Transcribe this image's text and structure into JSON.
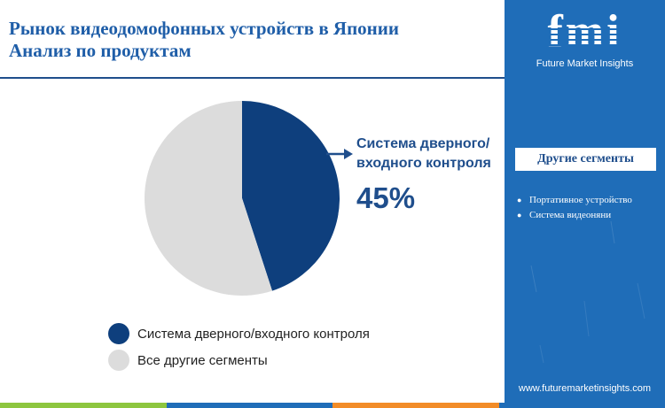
{
  "header": {
    "title_line1": "Рынок видеодомофонных устройств в Японии",
    "title_line2": "Анализ по продуктам"
  },
  "callout": {
    "label_line1": "Система дверного/",
    "label_line2": "входного контроля",
    "value": "45%",
    "arrow_icon": "arrow-right-icon"
  },
  "chart_data": {
    "type": "pie",
    "slices": [
      {
        "label": "Система дверного/входного контроля",
        "value": 45,
        "color": "#0e3f7d"
      },
      {
        "label": "Все другие сегменты",
        "value": 55,
        "color": "#dcdcdc"
      }
    ],
    "start_angle_deg": 0,
    "direction": "clockwise",
    "legend_position": "bottom"
  },
  "legend": {
    "items": [
      {
        "label": "Система дверного/входного контроля",
        "color": "#0e3f7d"
      },
      {
        "label": "Все другие сегменты",
        "color": "#dcdcdc"
      }
    ]
  },
  "sidebar": {
    "logo_text": "fmi",
    "logo_subtitle": "Future Market Insights",
    "segments_title": "Другие сегменты",
    "segments": [
      "Портативное устройство",
      "Система видеоняни"
    ],
    "website": "www.futuremarketinsights.com",
    "background_color": "#1f6db8"
  },
  "bottom_bar_colors": [
    "#8dc63f",
    "#1f6db8",
    "#f28c28",
    "#1f6db8"
  ]
}
